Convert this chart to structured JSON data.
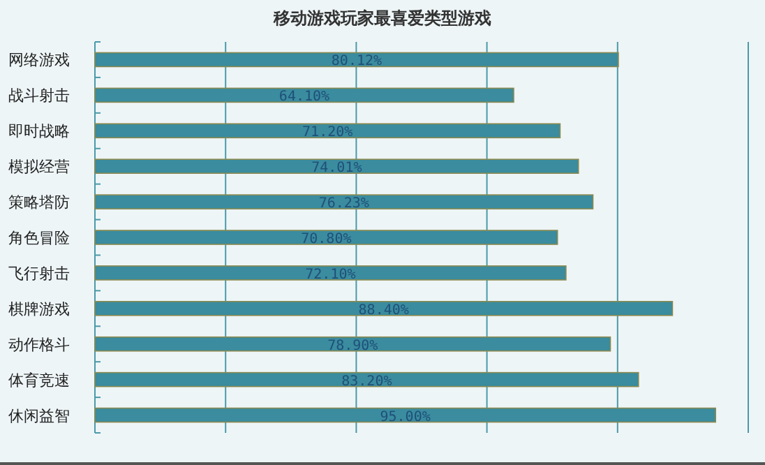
{
  "chart_data": {
    "type": "bar",
    "orientation": "horizontal",
    "title": "移动游戏玩家最喜爱类型游戏",
    "categories": [
      "网络游戏",
      "战斗射击",
      "即时战略",
      "模拟经营",
      "策略塔防",
      "角色冒险",
      "飞行射击",
      "棋牌游戏",
      "动作格斗",
      "体育竞速",
      "休闲益智"
    ],
    "values": [
      80.12,
      64.1,
      71.2,
      74.01,
      76.23,
      70.8,
      72.1,
      88.4,
      78.9,
      83.2,
      95.0
    ],
    "value_labels": [
      "80.12%",
      "64.10%",
      "71.20%",
      "74.01%",
      "76.23%",
      "70.80%",
      "72.10%",
      "88.40%",
      "78.90%",
      "83.20%",
      "95.00%"
    ],
    "color": "#3a8c9e",
    "xlim": [
      0,
      100
    ],
    "xticks": [
      {
        "value": 0,
        "label": null
      },
      {
        "value": 20,
        "label": null
      },
      {
        "value": 40,
        "label": null
      },
      {
        "value": 60,
        "label": null
      },
      {
        "value": 80,
        "label": null
      },
      {
        "value": 100,
        "label": null
      }
    ],
    "tick_labels": "y",
    "grid": "x"
  }
}
